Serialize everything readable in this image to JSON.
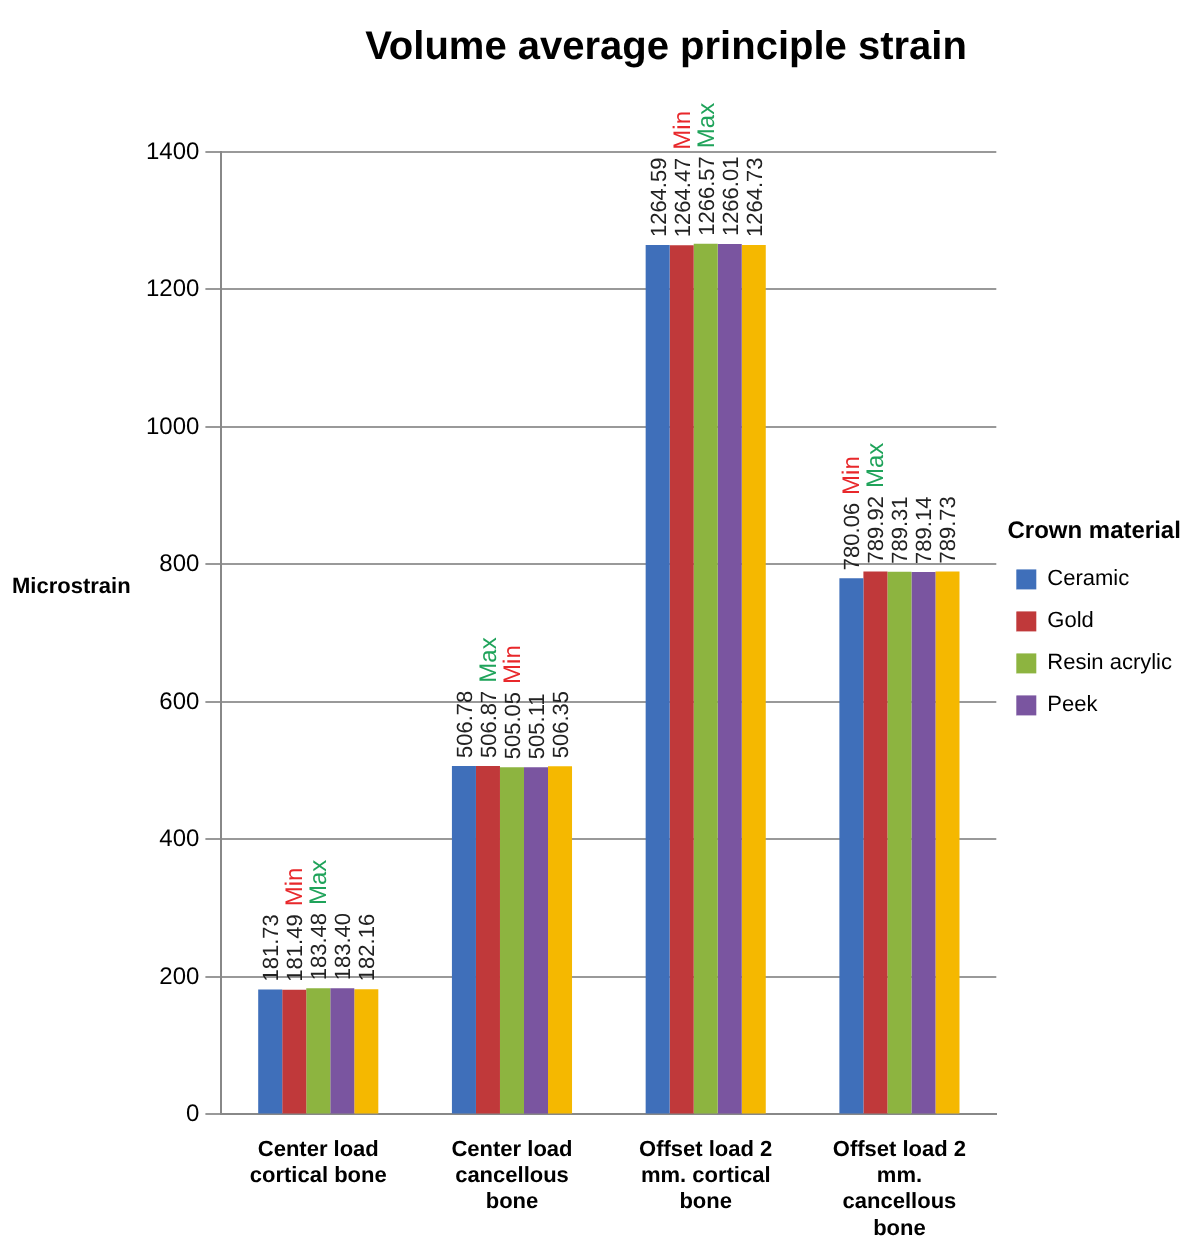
{
  "chart_data": {
    "type": "bar",
    "title": "Volume average principle strain",
    "ylabel": "Microstrain",
    "legend_title": "Crown material",
    "categories": [
      "Center load cortical bone",
      "Center load cancellous bone",
      "Offset load 2 mm. cortical bone",
      "Offset load 2 mm. cancellous bone"
    ],
    "series": [
      {
        "name": "Ceramic",
        "color": "#3f6fba",
        "values": [
          181.73,
          506.78,
          1264.59,
          780.06
        ],
        "value_labels": [
          "181.73",
          "506.78",
          "1264.59",
          "780.06"
        ]
      },
      {
        "name": "Gold",
        "color": "#c0393a",
        "values": [
          181.49,
          506.87,
          1264.47,
          789.92
        ],
        "value_labels": [
          "181.49",
          "506.87",
          "1264.47",
          "789.92"
        ]
      },
      {
        "name": "Resin acrylic",
        "color": "#8db440",
        "values": [
          183.48,
          505.05,
          1266.57,
          789.31
        ],
        "value_labels": [
          "183.48",
          "505.05",
          "1266.57",
          "789.31"
        ]
      },
      {
        "name": "Peek",
        "color": "#7a55a0",
        "values": [
          183.4,
          505.11,
          1266.01,
          789.14
        ],
        "value_labels": [
          "183.40",
          "505.11",
          "1266.01",
          "789.14"
        ]
      },
      {
        "color": "#f5b800",
        "values": [
          182.16,
          506.35,
          1264.73,
          789.73
        ],
        "value_labels": [
          "182.16",
          "506.35",
          "1264.73",
          "789.73"
        ]
      }
    ],
    "annotations": [
      "Min",
      "Max",
      "Min",
      "Max",
      "Min",
      "Max",
      "Min",
      "Max"
    ],
    "ylim": [
      0,
      1400
    ],
    "yticks": [
      0,
      200,
      400,
      600,
      800,
      1000,
      1200,
      1400
    ],
    "grid": "y",
    "legend": "right"
  }
}
